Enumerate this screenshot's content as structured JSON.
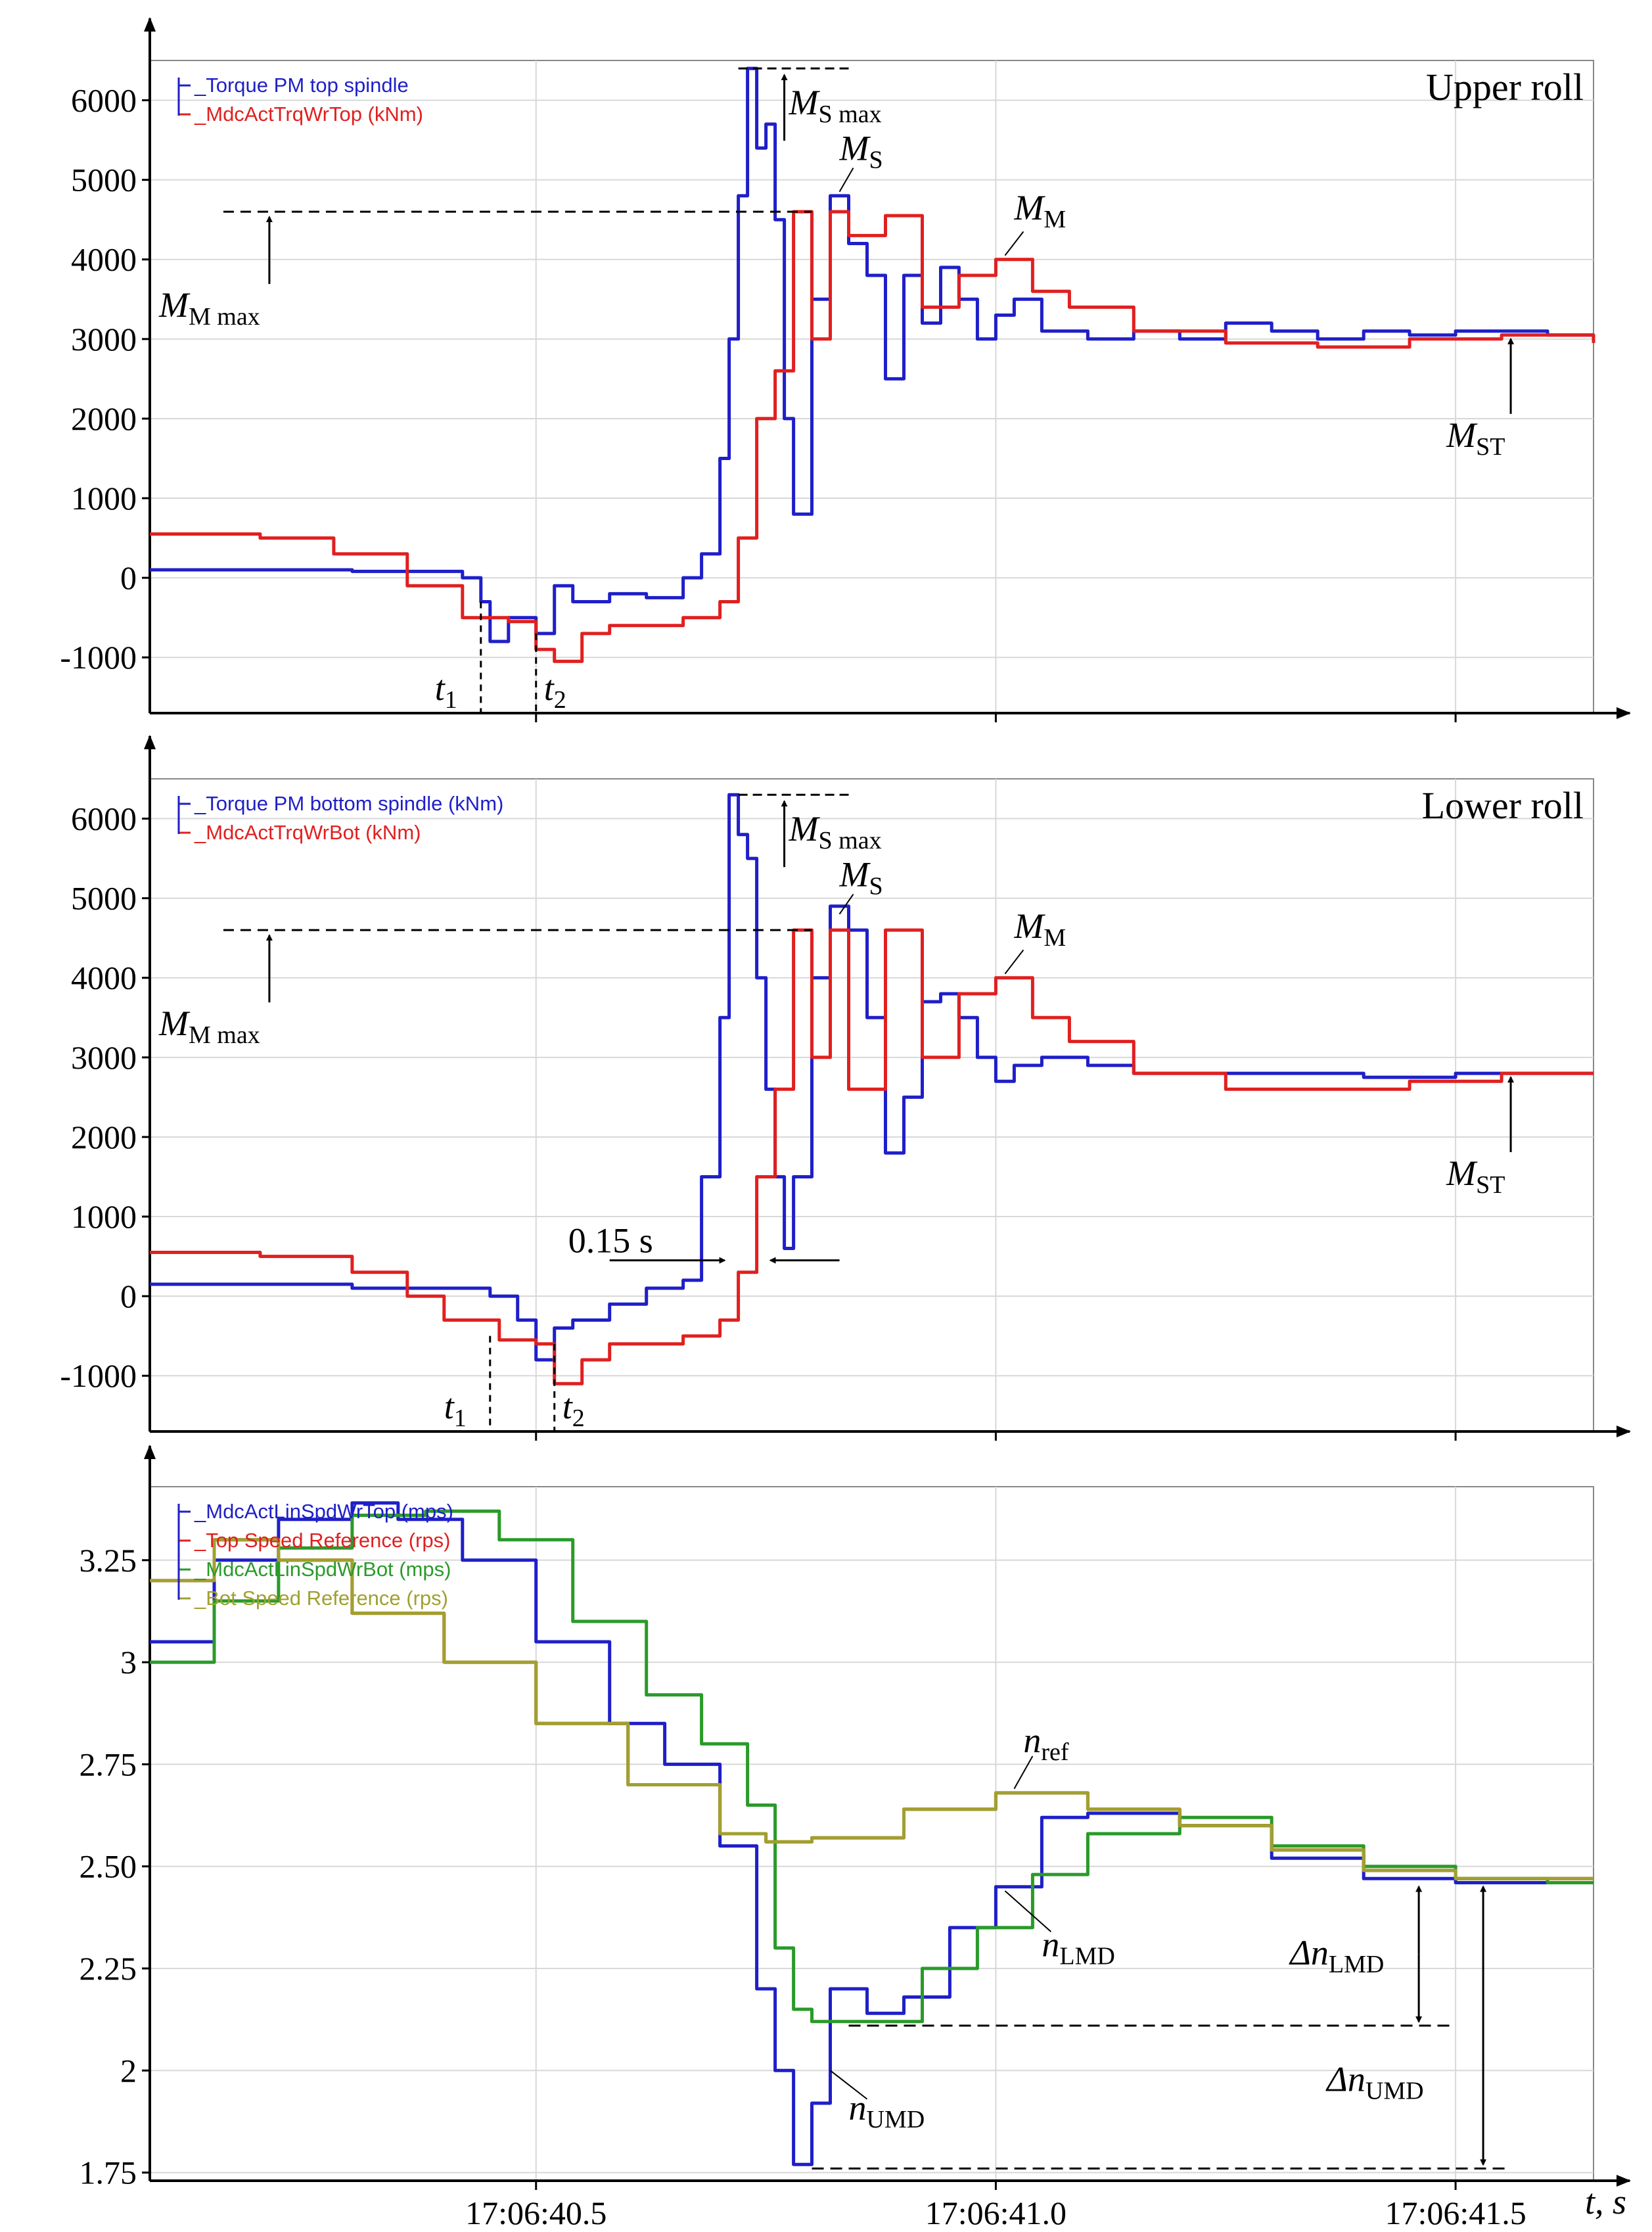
{
  "colors": {
    "blue": "#1f1fc8",
    "red": "#e02020",
    "green": "#2a9a2a",
    "olive": "#a0a030",
    "grid": "#d8d8d8",
    "axis": "#000000"
  },
  "x_axis": {
    "ticks": [
      40.5,
      41.0,
      41.5
    ],
    "tick_labels": [
      "17:06:40.5",
      "17:06:41.0",
      "17:06:41.5"
    ],
    "label": "t, s",
    "range": [
      40.08,
      41.65
    ]
  },
  "chart_data": [
    {
      "type": "line",
      "title": "Upper roll",
      "ylim": [
        -1700,
        6500
      ],
      "yticks": [
        -1000,
        0,
        1000,
        2000,
        3000,
        4000,
        5000,
        6000
      ],
      "ytick_labels": [
        "-1000",
        "0",
        "1000",
        "2000",
        "3000",
        "4000",
        "5000",
        "6000"
      ],
      "legend": [
        "_Torque PM top spindle",
        "_MdcActTrqWrTop (kNm)"
      ],
      "annotations": {
        "t1": "t",
        "t1_sub": "1",
        "t2": "t",
        "t2_sub": "2",
        "ms": "M",
        "ms_sub": "S",
        "msmax": "M",
        "msmax_sub": "S max",
        "mm": "M",
        "mm_sub": "M",
        "mmmax": "M",
        "mmmax_sub": "M max",
        "mst": "M",
        "mst_sub": "ST"
      },
      "series": [
        {
          "name": "_Torque PM top spindle",
          "color": "blue",
          "x": [
            40.08,
            40.3,
            40.42,
            40.44,
            40.45,
            40.47,
            40.5,
            40.52,
            40.54,
            40.58,
            40.62,
            40.66,
            40.68,
            40.7,
            40.71,
            40.72,
            40.73,
            40.74,
            40.75,
            40.76,
            40.77,
            40.78,
            40.8,
            40.82,
            40.84,
            40.86,
            40.88,
            40.9,
            40.92,
            40.94,
            40.96,
            40.98,
            41.0,
            41.02,
            41.05,
            41.1,
            41.15,
            41.2,
            41.25,
            41.3,
            41.35,
            41.4,
            41.45,
            41.5,
            41.55,
            41.6,
            41.65
          ],
          "y": [
            100,
            80,
            0,
            -300,
            -800,
            -500,
            -700,
            -100,
            -300,
            -200,
            -250,
            0,
            300,
            1500,
            3000,
            4800,
            6400,
            5400,
            5700,
            4500,
            2000,
            800,
            3500,
            4800,
            4200,
            3800,
            2500,
            3800,
            3200,
            3900,
            3500,
            3000,
            3300,
            3500,
            3100,
            3000,
            3100,
            3000,
            3200,
            3100,
            3000,
            3100,
            3050,
            3100,
            3100,
            3050,
            3050
          ]
        },
        {
          "name": "_MdcActTrqWrTop (kNm)",
          "color": "red",
          "x": [
            40.08,
            40.2,
            40.28,
            40.36,
            40.42,
            40.47,
            40.5,
            40.52,
            40.55,
            40.58,
            40.62,
            40.66,
            40.7,
            40.72,
            40.74,
            40.76,
            40.78,
            40.8,
            40.82,
            40.84,
            40.88,
            40.92,
            40.96,
            41.0,
            41.04,
            41.08,
            41.15,
            41.25,
            41.35,
            41.45,
            41.55,
            41.65
          ],
          "y": [
            550,
            500,
            300,
            -100,
            -500,
            -550,
            -900,
            -1050,
            -700,
            -600,
            -600,
            -500,
            -300,
            500,
            2000,
            2600,
            4600,
            3000,
            4600,
            4300,
            4550,
            3400,
            3800,
            4000,
            3600,
            3400,
            3100,
            2950,
            2900,
            3000,
            3050,
            2950
          ]
        }
      ]
    },
    {
      "type": "line",
      "title": "Lower roll",
      "ylim": [
        -1700,
        6500
      ],
      "yticks": [
        -1000,
        0,
        1000,
        2000,
        3000,
        4000,
        5000,
        6000
      ],
      "ytick_labels": [
        "-1000",
        "0",
        "1000",
        "2000",
        "3000",
        "4000",
        "5000",
        "6000"
      ],
      "legend": [
        "_Torque PM bottom spindle (kNm)",
        "_MdcActTrqWrBot (kNm)"
      ],
      "annotations": {
        "t1": "t",
        "t1_sub": "1",
        "t2": "t",
        "t2_sub": "2",
        "ms": "M",
        "ms_sub": "S",
        "msmax": "M",
        "msmax_sub": "S max",
        "mm": "M",
        "mm_sub": "M",
        "mmmax": "M",
        "mmmax_sub": "M max",
        "mst": "M",
        "mst_sub": "ST",
        "delay": "0.15 s"
      },
      "series": [
        {
          "name": "_Torque PM bottom spindle (kNm)",
          "color": "blue",
          "x": [
            40.08,
            40.3,
            40.45,
            40.48,
            40.5,
            40.52,
            40.54,
            40.58,
            40.62,
            40.66,
            40.68,
            40.7,
            40.71,
            40.72,
            40.73,
            40.74,
            40.75,
            40.76,
            40.77,
            40.78,
            40.8,
            40.82,
            40.84,
            40.86,
            40.88,
            40.9,
            40.92,
            40.94,
            40.96,
            40.98,
            41.0,
            41.02,
            41.05,
            41.1,
            41.15,
            41.2,
            41.3,
            41.4,
            41.5,
            41.6,
            41.65
          ],
          "y": [
            150,
            100,
            0,
            -300,
            -800,
            -400,
            -300,
            -100,
            100,
            200,
            1500,
            3500,
            6300,
            5800,
            5500,
            4000,
            2600,
            1500,
            600,
            1500,
            4000,
            4900,
            4600,
            3500,
            1800,
            2500,
            3700,
            3800,
            3500,
            3000,
            2700,
            2900,
            3000,
            2900,
            2800,
            2800,
            2800,
            2750,
            2800,
            2800,
            2800
          ]
        },
        {
          "name": "_MdcActTrqWrBot (kNm)",
          "color": "red",
          "x": [
            40.08,
            40.2,
            40.3,
            40.36,
            40.4,
            40.46,
            40.5,
            40.52,
            40.55,
            40.58,
            40.62,
            40.66,
            40.7,
            40.72,
            40.74,
            40.76,
            40.78,
            40.8,
            40.82,
            40.84,
            40.88,
            40.92,
            40.96,
            41.0,
            41.04,
            41.08,
            41.15,
            41.25,
            41.35,
            41.45,
            41.55,
            41.65
          ],
          "y": [
            550,
            500,
            300,
            0,
            -300,
            -550,
            -600,
            -1100,
            -800,
            -600,
            -600,
            -500,
            -300,
            300,
            1500,
            2600,
            4600,
            3000,
            4600,
            2600,
            4600,
            3000,
            3800,
            4000,
            3500,
            3200,
            2800,
            2600,
            2600,
            2700,
            2800,
            2800
          ]
        }
      ]
    },
    {
      "type": "line",
      "title": "",
      "ylim": [
        1.73,
        3.43
      ],
      "yticks": [
        1.75,
        2.0,
        2.25,
        2.5,
        2.75,
        3.0,
        3.25
      ],
      "ytick_labels": [
        "1.75",
        "2",
        "2.25",
        "2.50",
        "2.75",
        "3",
        "3.25"
      ],
      "legend": [
        "_MdcActLinSpdWrTop (mps)",
        "_Top Speed Reference (rps)",
        "_MdcActLinSpdWrBot (mps)",
        "_Bot Speed Reference (rps)"
      ],
      "annotations": {
        "nref": "n",
        "nref_sub": "ref",
        "nlmd": "n",
        "nlmd_sub": "LMD",
        "numd": "n",
        "numd_sub": "UMD",
        "dnlmd": "Δn",
        "dnlmd_sub": "LMD",
        "dnumd": "Δn",
        "dnumd_sub": "UMD"
      },
      "series": [
        {
          "name": "_MdcActLinSpdWrTop (mps)",
          "color": "blue",
          "x": [
            40.08,
            40.15,
            40.22,
            40.3,
            40.35,
            40.42,
            40.5,
            40.58,
            40.64,
            40.7,
            40.74,
            40.76,
            40.78,
            40.8,
            40.82,
            40.86,
            40.9,
            40.95,
            41.0,
            41.05,
            41.1,
            41.2,
            41.3,
            41.4,
            41.5,
            41.6,
            41.65
          ],
          "y": [
            3.05,
            3.25,
            3.35,
            3.39,
            3.35,
            3.25,
            3.05,
            2.85,
            2.75,
            2.55,
            2.2,
            2.0,
            1.77,
            1.92,
            2.2,
            2.14,
            2.18,
            2.35,
            2.45,
            2.62,
            2.63,
            2.6,
            2.52,
            2.47,
            2.46,
            2.46,
            2.46
          ]
        },
        {
          "name": "_Top Speed Reference (rps)",
          "color": "red",
          "x": [
            40.08,
            40.15,
            40.22,
            40.3,
            40.4,
            40.5,
            40.6,
            40.7,
            40.75,
            40.8,
            40.9,
            41.0,
            41.1,
            41.2,
            41.3,
            41.4,
            41.5,
            41.6,
            41.65
          ],
          "y": [
            3.2,
            3.3,
            3.25,
            3.12,
            3.0,
            2.85,
            2.7,
            2.58,
            2.56,
            2.57,
            2.64,
            2.68,
            2.64,
            2.6,
            2.54,
            2.49,
            2.47,
            2.47,
            2.47
          ]
        },
        {
          "name": "_MdcActLinSpdWrBot (mps)",
          "color": "green",
          "x": [
            40.08,
            40.15,
            40.22,
            40.3,
            40.38,
            40.46,
            40.54,
            40.62,
            40.68,
            40.73,
            40.76,
            40.78,
            40.8,
            40.84,
            40.88,
            40.92,
            40.98,
            41.04,
            41.1,
            41.2,
            41.3,
            41.4,
            41.5,
            41.6,
            41.65
          ],
          "y": [
            3.0,
            3.15,
            3.28,
            3.36,
            3.37,
            3.3,
            3.1,
            2.92,
            2.8,
            2.65,
            2.3,
            2.15,
            2.12,
            2.12,
            2.12,
            2.25,
            2.35,
            2.48,
            2.58,
            2.62,
            2.55,
            2.5,
            2.47,
            2.46,
            2.46
          ]
        },
        {
          "name": "_Bot Speed Reference (rps)",
          "color": "olive",
          "x": [
            40.08,
            40.15,
            40.22,
            40.3,
            40.4,
            40.5,
            40.6,
            40.7,
            40.75,
            40.8,
            40.9,
            41.0,
            41.1,
            41.2,
            41.3,
            41.4,
            41.5,
            41.6,
            41.65
          ],
          "y": [
            3.2,
            3.3,
            3.25,
            3.12,
            3.0,
            2.85,
            2.7,
            2.58,
            2.56,
            2.57,
            2.64,
            2.68,
            2.64,
            2.6,
            2.54,
            2.49,
            2.47,
            2.47,
            2.47
          ]
        }
      ]
    }
  ]
}
